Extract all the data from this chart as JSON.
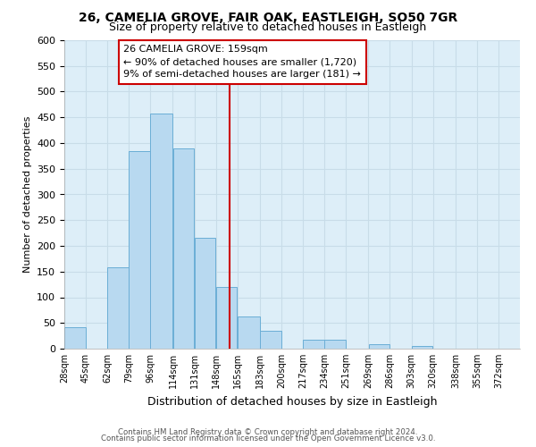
{
  "title1": "26, CAMELIA GROVE, FAIR OAK, EASTLEIGH, SO50 7GR",
  "title2": "Size of property relative to detached houses in Eastleigh",
  "xlabel": "Distribution of detached houses by size in Eastleigh",
  "ylabel": "Number of detached properties",
  "bar_left_edges": [
    28,
    45,
    62,
    79,
    96,
    114,
    131,
    148,
    165,
    183,
    200,
    217,
    234,
    251,
    269,
    286,
    303,
    320,
    338,
    355
  ],
  "bar_widths": [
    17,
    17,
    17,
    17,
    18,
    17,
    17,
    17,
    18,
    17,
    17,
    17,
    17,
    18,
    17,
    17,
    17,
    18,
    17,
    17
  ],
  "bar_heights": [
    42,
    0,
    158,
    385,
    457,
    390,
    215,
    120,
    62,
    35,
    0,
    17,
    17,
    0,
    8,
    0,
    5,
    0,
    0,
    0
  ],
  "bar_color": "#b8d9f0",
  "bar_edgecolor": "#6baed6",
  "vline_x": 159,
  "vline_color": "#cc0000",
  "ylim": [
    0,
    600
  ],
  "yticks": [
    0,
    50,
    100,
    150,
    200,
    250,
    300,
    350,
    400,
    450,
    500,
    550,
    600
  ],
  "xtick_labels": [
    "28sqm",
    "45sqm",
    "62sqm",
    "79sqm",
    "96sqm",
    "114sqm",
    "131sqm",
    "148sqm",
    "165sqm",
    "183sqm",
    "200sqm",
    "217sqm",
    "234sqm",
    "251sqm",
    "269sqm",
    "286sqm",
    "303sqm",
    "320sqm",
    "338sqm",
    "355sqm",
    "372sqm"
  ],
  "xtick_positions": [
    28,
    45,
    62,
    79,
    96,
    114,
    131,
    148,
    165,
    183,
    200,
    217,
    234,
    251,
    269,
    286,
    303,
    320,
    338,
    355,
    372
  ],
  "annotation_title": "26 CAMELIA GROVE: 159sqm",
  "annotation_line1": "← 90% of detached houses are smaller (1,720)",
  "annotation_line2": "9% of semi-detached houses are larger (181) →",
  "footer1": "Contains HM Land Registry data © Crown copyright and database right 2024.",
  "footer2": "Contains public sector information licensed under the Open Government Licence v3.0.",
  "grid_color": "#c8dce8",
  "background_color": "#ddeef8",
  "xlim_left": 28,
  "xlim_right": 389
}
